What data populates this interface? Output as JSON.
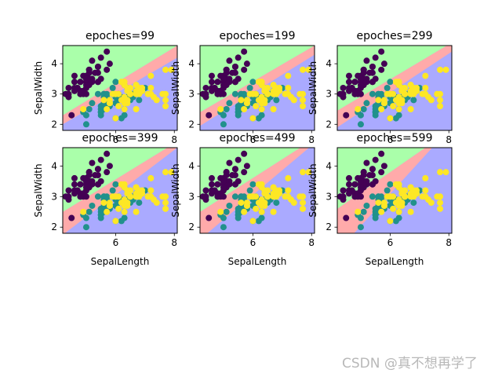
{
  "watermark": "CSDN @真不想再学了",
  "region_colors": {
    "setosa": "#aaffaa",
    "versicolor": "#ffaaaa",
    "virginica": "#aaaaff"
  },
  "point_colors": {
    "0": "#440154",
    "1": "#21918c",
    "2": "#fde725"
  },
  "chart_data": [
    {
      "type": "scatter",
      "title": "epoches=99",
      "xlabel": "",
      "ylabel": "SepalWidth",
      "xlim": [
        4.2,
        8.1
      ],
      "ylim": [
        1.8,
        4.6
      ],
      "xticks": [
        "6",
        "8"
      ],
      "yticks": [
        "2",
        "3",
        "4"
      ],
      "boundary_01": [
        [
          4.2,
          2.3
        ],
        [
          8.1,
          4.6
        ]
      ],
      "boundary_12": [
        [
          4.2,
          2.0
        ],
        [
          8.1,
          4.2
        ]
      ]
    },
    {
      "type": "scatter",
      "title": "epoches=199",
      "xlabel": "",
      "ylabel": "SepalWidth",
      "xlim": [
        4.2,
        8.1
      ],
      "ylim": [
        1.8,
        4.6
      ],
      "xticks": [
        "6",
        "8"
      ],
      "yticks": [
        "2",
        "3",
        "4"
      ],
      "boundary_01": [
        [
          4.2,
          2.4
        ],
        [
          8.1,
          4.6
        ]
      ],
      "boundary_12": [
        [
          4.2,
          1.95
        ],
        [
          8.1,
          4.3
        ]
      ]
    },
    {
      "type": "scatter",
      "title": "epoches=299",
      "xlabel": "",
      "ylabel": "SepalWidth",
      "xlim": [
        4.2,
        8.1
      ],
      "ylim": [
        1.8,
        4.6
      ],
      "xticks": [
        "6",
        "8"
      ],
      "yticks": [
        "2",
        "3",
        "4"
      ],
      "boundary_01": [
        [
          4.2,
          2.45
        ],
        [
          8.1,
          4.7
        ]
      ],
      "boundary_12": [
        [
          4.2,
          1.9
        ],
        [
          8.1,
          4.4
        ]
      ]
    },
    {
      "type": "scatter",
      "title": "epoches=399",
      "xlabel": "SepalLength",
      "ylabel": "SepalWidth",
      "xlim": [
        4.2,
        8.1
      ],
      "ylim": [
        1.8,
        4.6
      ],
      "xticks": [
        "6",
        "8"
      ],
      "yticks": [
        "2",
        "3",
        "4"
      ],
      "boundary_01": [
        [
          4.2,
          2.5
        ],
        [
          8.1,
          4.8
        ]
      ],
      "boundary_12": [
        [
          4.2,
          1.75
        ],
        [
          8.1,
          4.6
        ]
      ]
    },
    {
      "type": "scatter",
      "title": "epoches=499",
      "xlabel": "SepalLength",
      "ylabel": "SepalWidth",
      "xlim": [
        4.2,
        8.1
      ],
      "ylim": [
        1.8,
        4.6
      ],
      "xticks": [
        "6",
        "8"
      ],
      "yticks": [
        "2",
        "3",
        "4"
      ],
      "boundary_01": [
        [
          4.2,
          2.5
        ],
        [
          8.1,
          4.9
        ]
      ],
      "boundary_12": [
        [
          4.2,
          1.6
        ],
        [
          8.1,
          4.75
        ]
      ]
    },
    {
      "type": "scatter",
      "title": "epoches=599",
      "xlabel": "SepalLength",
      "ylabel": "SepalWidth",
      "xlim": [
        4.2,
        8.1
      ],
      "ylim": [
        1.8,
        4.6
      ],
      "xticks": [
        "6",
        "8"
      ],
      "yticks": [
        "2",
        "3",
        "4"
      ],
      "boundary_01": [
        [
          4.2,
          2.6
        ],
        [
          7.5,
          4.8
        ]
      ],
      "boundary_12": [
        [
          4.2,
          1.2
        ],
        [
          8.1,
          5.3
        ]
      ]
    }
  ],
  "points": [
    [
      5.1,
      3.5,
      0
    ],
    [
      4.9,
      3.0,
      0
    ],
    [
      4.7,
      3.2,
      0
    ],
    [
      4.6,
      3.1,
      0
    ],
    [
      5.0,
      3.6,
      0
    ],
    [
      5.4,
      3.9,
      0
    ],
    [
      4.6,
      3.4,
      0
    ],
    [
      5.0,
      3.4,
      0
    ],
    [
      4.4,
      2.9,
      0
    ],
    [
      4.9,
      3.1,
      0
    ],
    [
      5.4,
      3.7,
      0
    ],
    [
      4.8,
      3.4,
      0
    ],
    [
      4.8,
      3.0,
      0
    ],
    [
      4.3,
      3.0,
      0
    ],
    [
      5.8,
      4.0,
      0
    ],
    [
      5.7,
      4.4,
      0
    ],
    [
      5.4,
      3.9,
      0
    ],
    [
      5.1,
      3.5,
      0
    ],
    [
      5.7,
      3.8,
      0
    ],
    [
      5.1,
      3.8,
      0
    ],
    [
      5.4,
      3.4,
      0
    ],
    [
      5.1,
      3.7,
      0
    ],
    [
      4.6,
      3.6,
      0
    ],
    [
      5.1,
      3.3,
      0
    ],
    [
      4.8,
      3.4,
      0
    ],
    [
      5.0,
      3.0,
      0
    ],
    [
      5.0,
      3.4,
      0
    ],
    [
      5.2,
      3.5,
      0
    ],
    [
      5.2,
      3.4,
      0
    ],
    [
      4.7,
      3.2,
      0
    ],
    [
      4.8,
      3.1,
      0
    ],
    [
      5.4,
      3.4,
      0
    ],
    [
      5.2,
      4.1,
      0
    ],
    [
      5.5,
      4.2,
      0
    ],
    [
      4.9,
      3.1,
      0
    ],
    [
      5.0,
      3.2,
      0
    ],
    [
      5.5,
      3.5,
      0
    ],
    [
      4.9,
      3.6,
      0
    ],
    [
      4.4,
      3.0,
      0
    ],
    [
      5.1,
      3.4,
      0
    ],
    [
      5.0,
      3.5,
      0
    ],
    [
      4.5,
      2.3,
      0
    ],
    [
      4.4,
      3.2,
      0
    ],
    [
      5.0,
      3.5,
      0
    ],
    [
      5.1,
      3.8,
      0
    ],
    [
      4.8,
      3.0,
      0
    ],
    [
      5.1,
      3.8,
      0
    ],
    [
      4.6,
      3.2,
      0
    ],
    [
      5.3,
      3.7,
      0
    ],
    [
      5.0,
      3.3,
      0
    ],
    [
      7.0,
      3.2,
      1
    ],
    [
      6.4,
      3.2,
      1
    ],
    [
      6.9,
      3.1,
      1
    ],
    [
      5.5,
      2.3,
      1
    ],
    [
      6.5,
      2.8,
      1
    ],
    [
      5.7,
      2.8,
      1
    ],
    [
      6.3,
      3.3,
      1
    ],
    [
      4.9,
      2.4,
      1
    ],
    [
      6.6,
      2.9,
      1
    ],
    [
      5.2,
      2.7,
      1
    ],
    [
      5.0,
      2.0,
      1
    ],
    [
      5.9,
      3.0,
      1
    ],
    [
      6.0,
      2.2,
      1
    ],
    [
      6.1,
      2.9,
      1
    ],
    [
      5.6,
      2.9,
      1
    ],
    [
      6.7,
      3.1,
      1
    ],
    [
      5.6,
      3.0,
      1
    ],
    [
      5.8,
      2.7,
      1
    ],
    [
      6.2,
      2.2,
      1
    ],
    [
      5.6,
      2.5,
      1
    ],
    [
      5.9,
      3.2,
      1
    ],
    [
      6.1,
      2.8,
      1
    ],
    [
      6.3,
      2.5,
      1
    ],
    [
      6.1,
      2.8,
      1
    ],
    [
      6.4,
      2.9,
      1
    ],
    [
      6.6,
      3.0,
      1
    ],
    [
      6.8,
      2.8,
      1
    ],
    [
      6.7,
      3.0,
      1
    ],
    [
      6.0,
      2.9,
      1
    ],
    [
      5.7,
      2.6,
      1
    ],
    [
      5.5,
      2.4,
      1
    ],
    [
      5.5,
      2.4,
      1
    ],
    [
      5.8,
      2.7,
      1
    ],
    [
      6.0,
      2.7,
      1
    ],
    [
      5.4,
      3.0,
      1
    ],
    [
      6.0,
      3.4,
      1
    ],
    [
      6.7,
      3.1,
      1
    ],
    [
      6.3,
      2.3,
      1
    ],
    [
      5.6,
      3.0,
      1
    ],
    [
      5.5,
      2.5,
      1
    ],
    [
      5.5,
      2.6,
      1
    ],
    [
      6.1,
      3.0,
      1
    ],
    [
      5.8,
      2.6,
      1
    ],
    [
      5.0,
      2.3,
      1
    ],
    [
      5.6,
      2.7,
      1
    ],
    [
      5.7,
      3.0,
      1
    ],
    [
      5.7,
      2.9,
      1
    ],
    [
      6.2,
      2.9,
      1
    ],
    [
      5.1,
      2.5,
      1
    ],
    [
      5.7,
      2.8,
      1
    ],
    [
      6.3,
      3.3,
      2
    ],
    [
      5.8,
      2.7,
      2
    ],
    [
      7.1,
      3.0,
      2
    ],
    [
      6.3,
      2.9,
      2
    ],
    [
      6.5,
      3.0,
      2
    ],
    [
      7.6,
      3.0,
      2
    ],
    [
      4.9,
      2.5,
      2
    ],
    [
      7.3,
      2.9,
      2
    ],
    [
      6.7,
      2.5,
      2
    ],
    [
      7.2,
      3.6,
      2
    ],
    [
      6.5,
      3.2,
      2
    ],
    [
      6.4,
      2.7,
      2
    ],
    [
      6.8,
      3.0,
      2
    ],
    [
      5.7,
      2.5,
      2
    ],
    [
      5.8,
      2.8,
      2
    ],
    [
      6.4,
      3.2,
      2
    ],
    [
      6.5,
      3.0,
      2
    ],
    [
      7.7,
      3.8,
      2
    ],
    [
      7.7,
      2.6,
      2
    ],
    [
      6.0,
      2.2,
      2
    ],
    [
      6.9,
      3.2,
      2
    ],
    [
      5.6,
      2.8,
      2
    ],
    [
      7.7,
      2.8,
      2
    ],
    [
      6.3,
      2.7,
      2
    ],
    [
      6.7,
      3.3,
      2
    ],
    [
      7.2,
      3.2,
      2
    ],
    [
      6.2,
      2.8,
      2
    ],
    [
      6.1,
      3.0,
      2
    ],
    [
      6.4,
      2.8,
      2
    ],
    [
      7.2,
      3.0,
      2
    ],
    [
      7.4,
      2.8,
      2
    ],
    [
      7.9,
      3.8,
      2
    ],
    [
      6.4,
      2.8,
      2
    ],
    [
      6.3,
      2.8,
      2
    ],
    [
      6.1,
      2.6,
      2
    ],
    [
      7.7,
      3.0,
      2
    ],
    [
      6.3,
      3.4,
      2
    ],
    [
      6.4,
      3.1,
      2
    ],
    [
      6.0,
      3.0,
      2
    ],
    [
      6.9,
      3.1,
      2
    ],
    [
      6.7,
      3.1,
      2
    ],
    [
      6.9,
      3.1,
      2
    ],
    [
      5.8,
      2.7,
      2
    ],
    [
      6.8,
      3.2,
      2
    ],
    [
      6.7,
      3.3,
      2
    ],
    [
      6.7,
      3.0,
      2
    ],
    [
      6.3,
      2.5,
      2
    ],
    [
      6.5,
      3.0,
      2
    ],
    [
      6.2,
      3.4,
      2
    ],
    [
      5.9,
      3.0,
      2
    ]
  ]
}
